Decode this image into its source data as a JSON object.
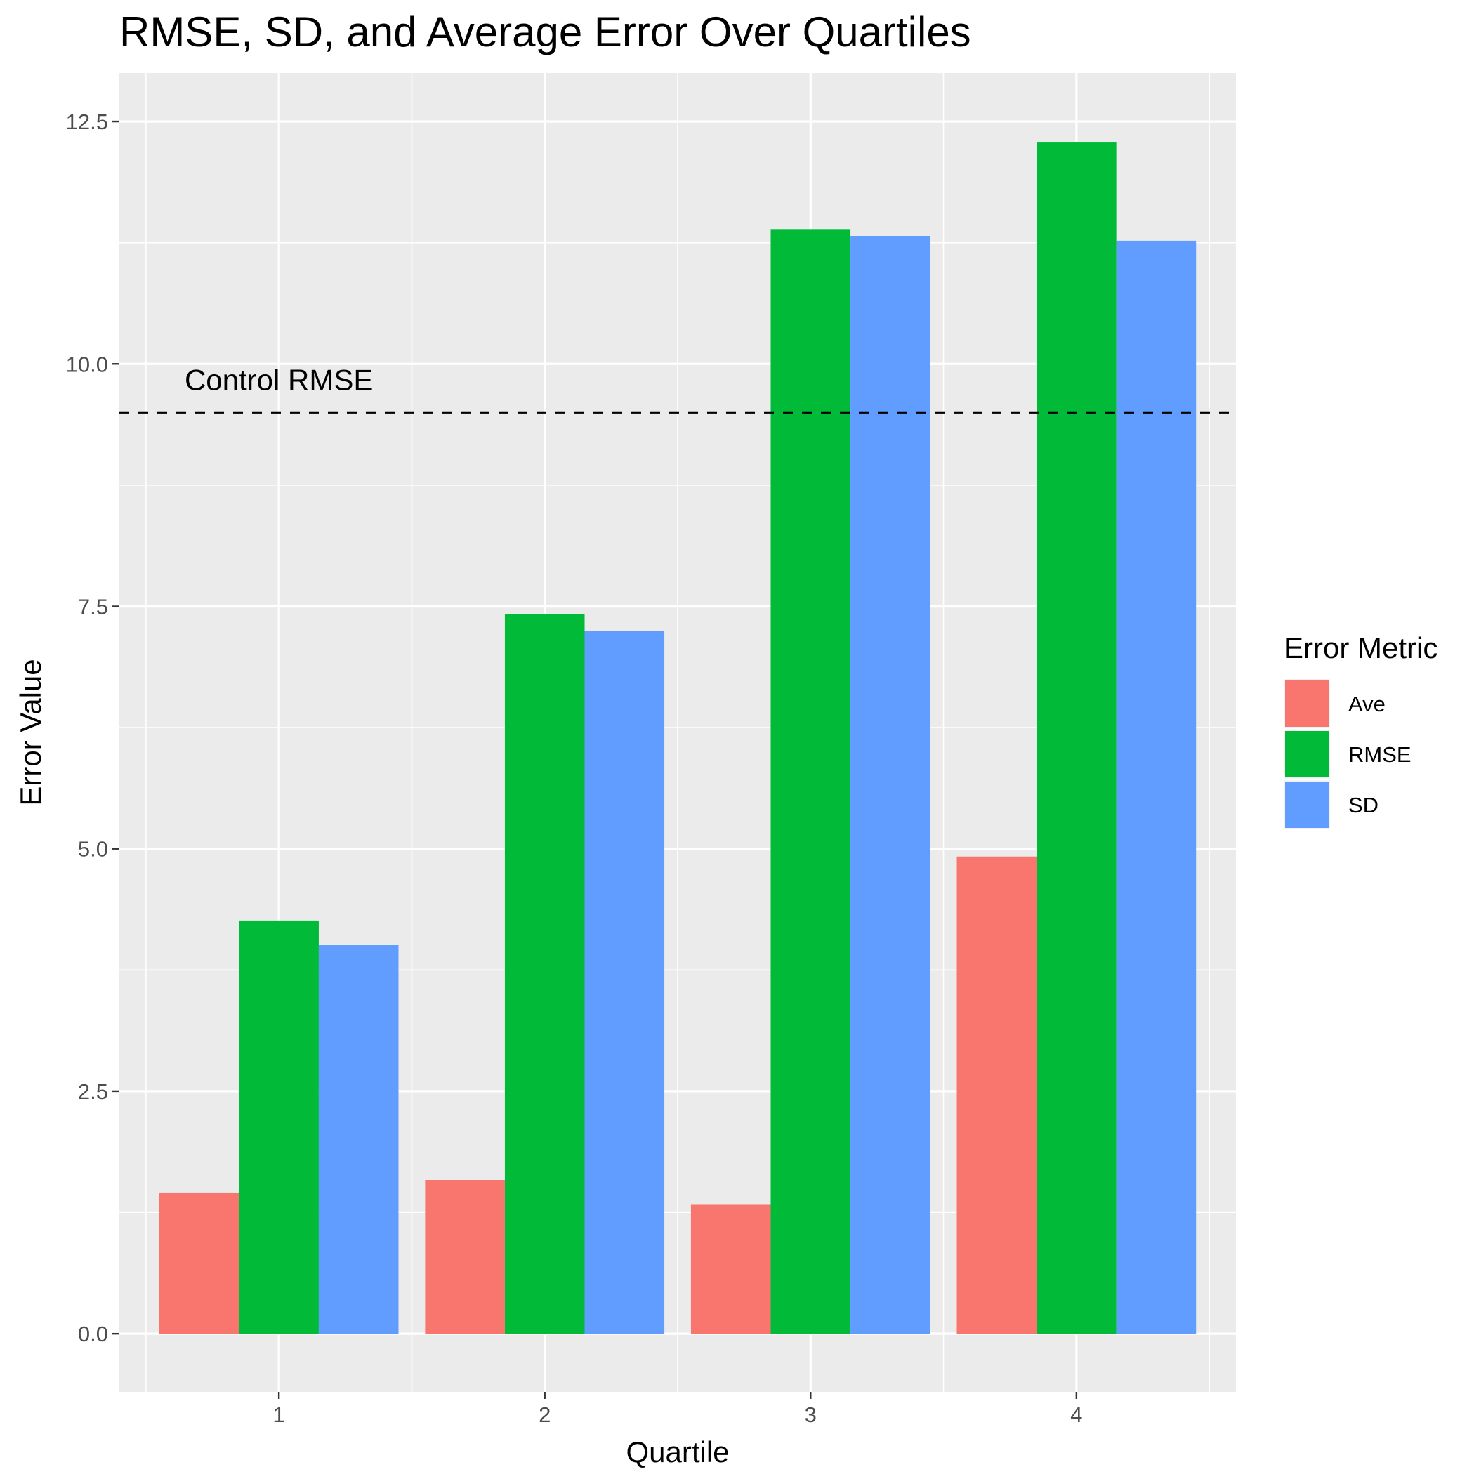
{
  "chart_data": {
    "type": "bar",
    "title": "RMSE, SD, and Average Error Over Quartiles",
    "xlabel": "Quartile",
    "ylabel": "Error Value",
    "categories": [
      "1",
      "2",
      "3",
      "4"
    ],
    "series": [
      {
        "name": "Ave",
        "color": "#F8766D",
        "values": [
          1.45,
          1.58,
          1.33,
          4.92
        ]
      },
      {
        "name": "RMSE",
        "color": "#00BA38",
        "values": [
          4.26,
          7.42,
          11.39,
          12.29
        ]
      },
      {
        "name": "SD",
        "color": "#619CFF",
        "values": [
          4.01,
          7.25,
          11.32,
          11.27
        ]
      }
    ],
    "ylim": [
      -0.6,
      13.0
    ],
    "yticks": [
      "0.0",
      "2.5",
      "5.0",
      "7.5",
      "10.0",
      "12.5"
    ],
    "legend_title": "Error Metric",
    "legend_position": "right",
    "grid": true,
    "panel_background": "#EBEBEB",
    "reference_line": {
      "label": "Control RMSE",
      "value": 9.5,
      "style": "dashed",
      "color": "#000000"
    }
  }
}
